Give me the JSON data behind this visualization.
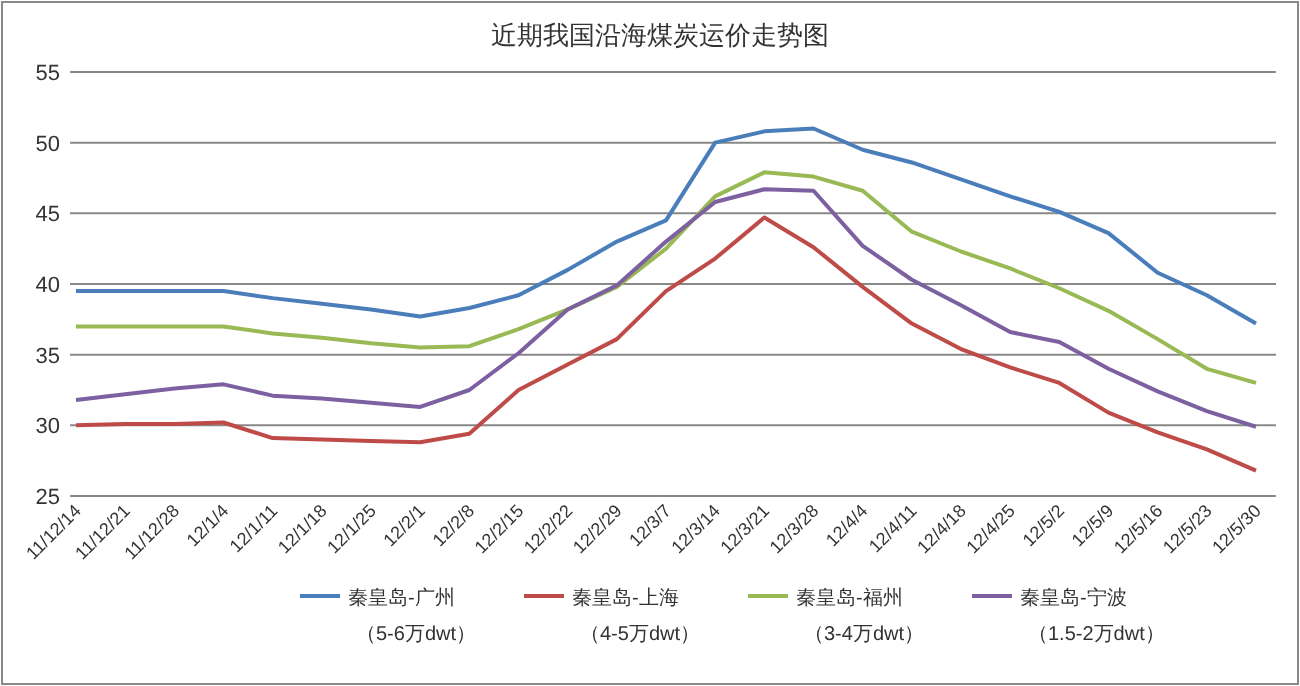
{
  "chart_data": {
    "type": "line",
    "title": "近期我国沿海煤炭运价走势图",
    "categories": [
      "11/12/14",
      "11/12/21",
      "11/12/28",
      "12/1/4",
      "12/1/11",
      "12/1/18",
      "12/1/25",
      "12/2/1",
      "12/2/8",
      "12/2/15",
      "12/2/22",
      "12/2/29",
      "12/3/7",
      "12/3/14",
      "12/3/21",
      "12/3/28",
      "12/4/4",
      "12/4/11",
      "12/4/18",
      "12/4/25",
      "12/5/2",
      "12/5/9",
      "12/5/16",
      "12/5/23",
      "12/5/30"
    ],
    "series": [
      {
        "name": "秦皇岛-广州（5-6万dwt）",
        "color": "#4a7ebb",
        "values": [
          39.5,
          39.5,
          39.5,
          39.5,
          39.0,
          38.6,
          38.2,
          37.7,
          38.3,
          39.2,
          41.0,
          43.0,
          44.5,
          50.0,
          50.8,
          51.0,
          49.5,
          48.6,
          47.4,
          46.2,
          45.1,
          43.6,
          40.8,
          39.2,
          37.2
        ]
      },
      {
        "name": "秦皇岛-上海（4-5万dwt）",
        "color": "#be4b48",
        "values": [
          30.0,
          30.1,
          30.1,
          30.2,
          29.1,
          29.0,
          28.9,
          28.8,
          29.4,
          32.5,
          34.3,
          36.1,
          39.5,
          41.8,
          44.7,
          42.6,
          39.8,
          37.2,
          35.4,
          34.1,
          33.0,
          30.9,
          29.5,
          28.3,
          26.8
        ]
      },
      {
        "name": "秦皇岛-福州（3-4万dwt）",
        "color": "#98b954",
        "values": [
          37.0,
          37.0,
          37.0,
          37.0,
          36.5,
          36.2,
          35.8,
          35.5,
          35.6,
          36.8,
          38.2,
          39.8,
          42.5,
          46.2,
          47.9,
          47.6,
          46.6,
          43.7,
          42.3,
          41.1,
          39.7,
          38.1,
          36.1,
          34.0,
          33.0
        ]
      },
      {
        "name": "秦皇岛-宁波（1.5-2万dwt）",
        "color": "#7d60a0",
        "values": [
          31.8,
          32.2,
          32.6,
          32.9,
          32.1,
          31.9,
          31.6,
          31.3,
          32.5,
          35.1,
          38.2,
          39.9,
          43.0,
          45.8,
          46.7,
          46.6,
          42.7,
          40.3,
          38.5,
          36.6,
          35.9,
          34.0,
          32.4,
          31.0,
          29.9
        ]
      }
    ],
    "ylim": [
      25,
      55
    ],
    "yticks": [
      25,
      30,
      35,
      40,
      45,
      50,
      55
    ],
    "grid": "y",
    "legend": "bottom"
  }
}
